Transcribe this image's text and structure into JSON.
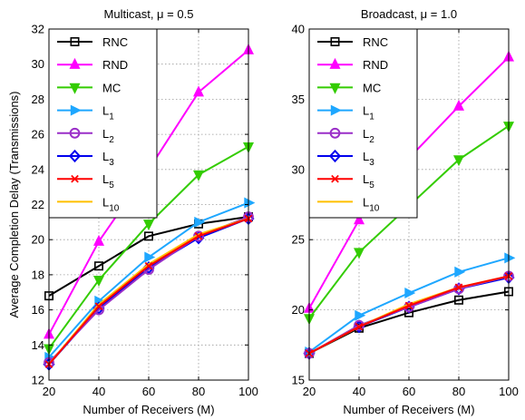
{
  "chart_data": [
    {
      "type": "line",
      "title": "Multicast, μ = 0.5",
      "xlabel": "Number of Receivers (M)",
      "ylabel": "Average Completion Delay (Transmissions)",
      "x": [
        20,
        40,
        60,
        80,
        100
      ],
      "xlim": [
        20,
        100
      ],
      "ylim": [
        12,
        32
      ],
      "xticks": [
        20,
        40,
        60,
        80,
        100
      ],
      "yticks": [
        12,
        14,
        16,
        18,
        20,
        22,
        24,
        26,
        28,
        30,
        32
      ],
      "grid": true,
      "legend_position": "top-left",
      "series": [
        {
          "name": "RNC",
          "values": [
            16.8,
            18.5,
            20.2,
            20.9,
            21.3
          ]
        },
        {
          "name": "RND",
          "values": [
            14.6,
            19.9,
            24.0,
            28.4,
            30.8
          ]
        },
        {
          "name": "MC",
          "values": [
            13.8,
            17.7,
            20.9,
            23.7,
            25.3
          ]
        },
        {
          "name": "L1",
          "values": [
            13.3,
            16.5,
            19.0,
            21.0,
            22.1
          ]
        },
        {
          "name": "L2",
          "values": [
            13.0,
            16.0,
            18.3,
            20.2,
            21.3
          ]
        },
        {
          "name": "L3",
          "values": [
            12.9,
            16.1,
            18.4,
            20.1,
            21.2
          ]
        },
        {
          "name": "L5",
          "values": [
            12.9,
            16.2,
            18.5,
            20.2,
            21.2
          ]
        },
        {
          "name": "L10",
          "values": [
            12.9,
            16.3,
            18.6,
            20.3,
            21.2
          ]
        }
      ]
    },
    {
      "type": "line",
      "title": "Broadcast, μ = 1.0",
      "xlabel": "Number of Receivers (M)",
      "ylabel": "",
      "x": [
        20,
        40,
        60,
        80,
        100
      ],
      "xlim": [
        20,
        100
      ],
      "ylim": [
        15,
        40
      ],
      "xticks": [
        20,
        40,
        60,
        80,
        100
      ],
      "yticks": [
        15,
        20,
        25,
        30,
        35,
        40
      ],
      "grid": true,
      "legend_position": "top-left",
      "series": [
        {
          "name": "RNC",
          "values": [
            16.9,
            18.7,
            19.8,
            20.7,
            21.3
          ]
        },
        {
          "name": "RND",
          "values": [
            20.1,
            26.4,
            30.8,
            34.5,
            38.0
          ]
        },
        {
          "name": "MC",
          "values": [
            19.4,
            24.1,
            27.4,
            30.7,
            33.1
          ]
        },
        {
          "name": "L1",
          "values": [
            17.0,
            19.6,
            21.2,
            22.7,
            23.7
          ]
        },
        {
          "name": "L2",
          "values": [
            16.9,
            18.9,
            20.2,
            21.5,
            22.4
          ]
        },
        {
          "name": "L3",
          "values": [
            16.9,
            18.8,
            20.2,
            21.5,
            22.3
          ]
        },
        {
          "name": "L5",
          "values": [
            16.9,
            18.8,
            20.3,
            21.6,
            22.4
          ]
        },
        {
          "name": "L10",
          "values": [
            16.9,
            18.8,
            20.4,
            21.6,
            22.4
          ]
        }
      ]
    }
  ],
  "legend": [
    {
      "key": "RNC",
      "text": "RNC",
      "sub": "",
      "color": "#000000",
      "marker": "square"
    },
    {
      "key": "RND",
      "text": "RND",
      "sub": "",
      "color": "#ff00ff",
      "marker": "triangle-up"
    },
    {
      "key": "MC",
      "text": "MC",
      "sub": "",
      "color": "#33cc00",
      "marker": "triangle-down"
    },
    {
      "key": "L1",
      "text": "L",
      "sub": "1",
      "color": "#1ea7ff",
      "marker": "triangle-right"
    },
    {
      "key": "L2",
      "text": "L",
      "sub": "2",
      "color": "#9a2fc8",
      "marker": "circle"
    },
    {
      "key": "L3",
      "text": "L",
      "sub": "3",
      "color": "#0000ee",
      "marker": "diamond"
    },
    {
      "key": "L5",
      "text": "L",
      "sub": "5",
      "color": "#ff0000",
      "marker": "x"
    },
    {
      "key": "L10",
      "text": "L",
      "sub": "10",
      "color": "#ffc000",
      "marker": "none"
    }
  ]
}
